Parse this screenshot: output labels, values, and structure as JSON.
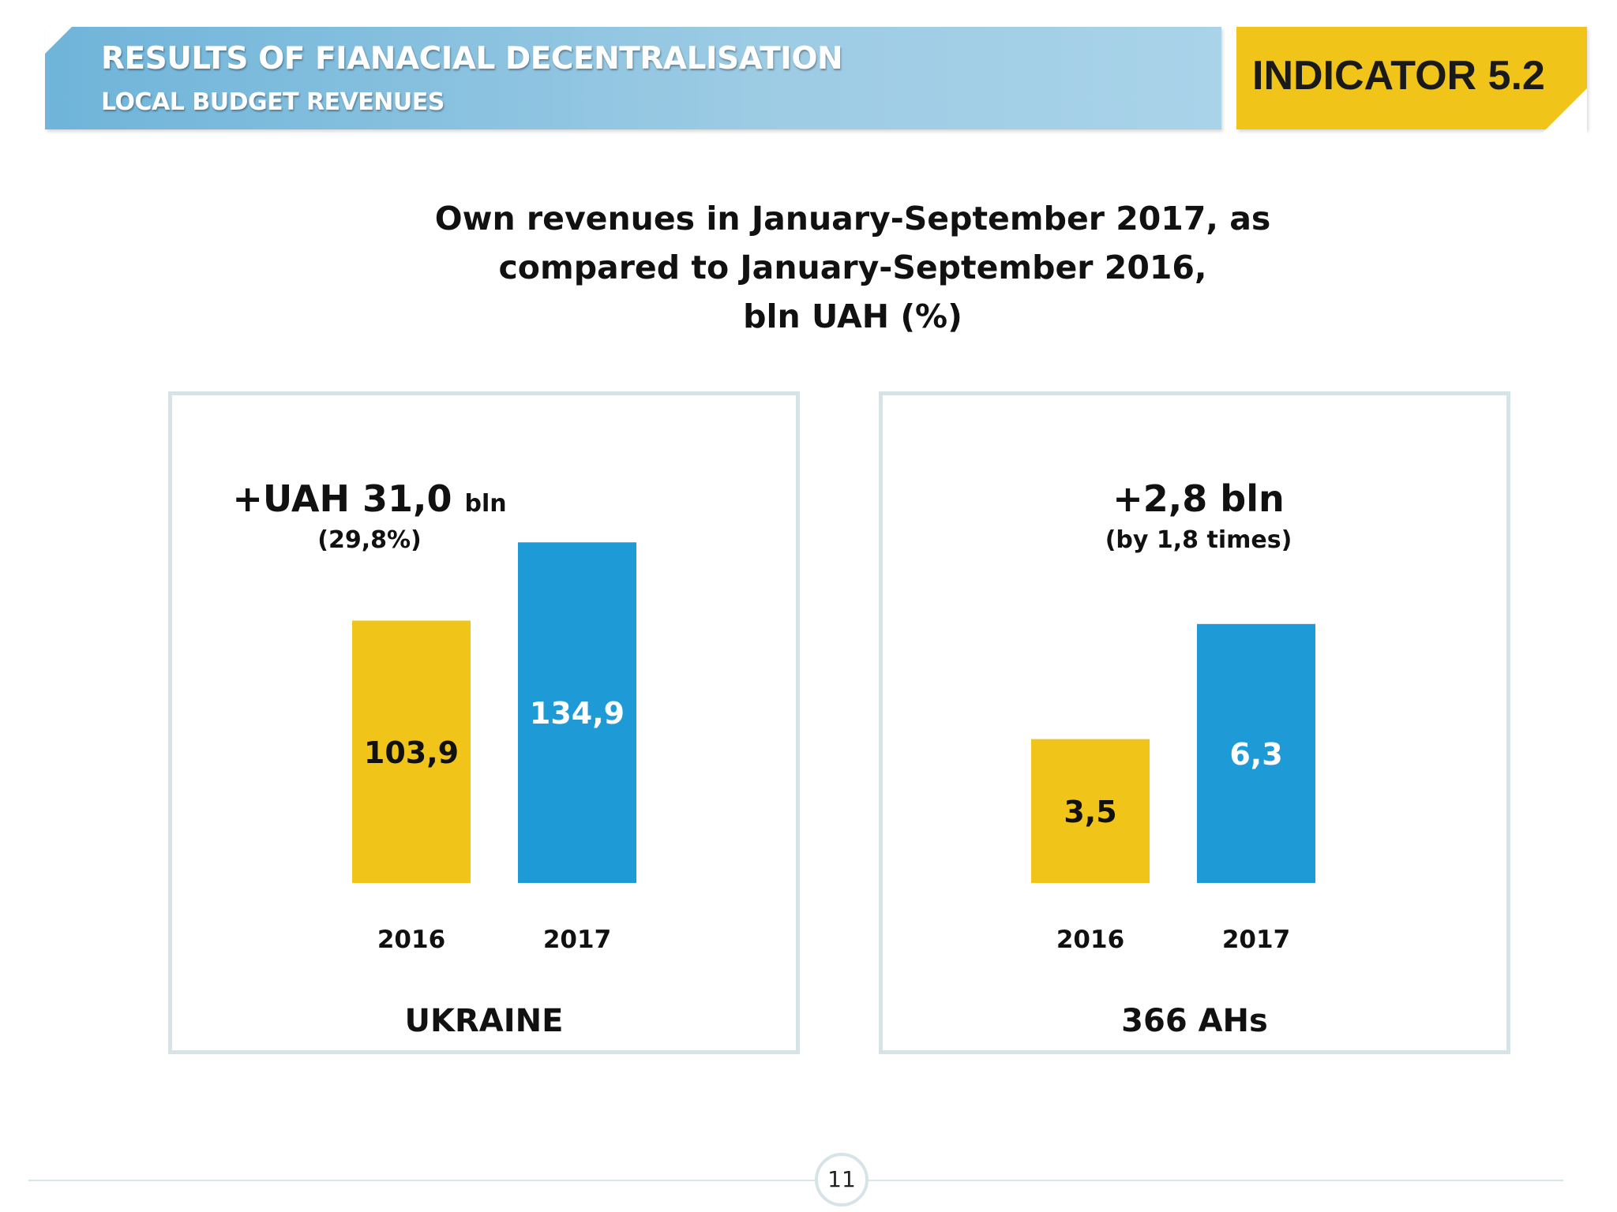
{
  "header": {
    "title": "RESULTS OF FIANACIAL DECENTRALISATION",
    "subtitle": "LOCAL BUDGET REVENUES",
    "indicator": "INDICATOR 5.2"
  },
  "title_lines": [
    "Own revenues in January-September 2017, as",
    "compared to January-September 2016,",
    "bln UAH (%)"
  ],
  "colors": {
    "bar_2016": "#f0c419",
    "bar_2017": "#1e9bd7",
    "header": "#8ec3e0",
    "indicator": "#f0c419",
    "panel_border": "#d6e4e8"
  },
  "chart_data": [
    {
      "type": "bar",
      "title": "UKRAINE",
      "categories": [
        "2016",
        "2017"
      ],
      "values": [
        103.9,
        134.9
      ],
      "value_labels": [
        "103,9",
        "134,9"
      ],
      "ylim": [
        0,
        140
      ],
      "annotation": {
        "main": "+UAH 31,0",
        "unit": "bln",
        "sub": "(29,8%)"
      },
      "grid": false
    },
    {
      "type": "bar",
      "title": "366 AHs",
      "categories": [
        "2016",
        "2017"
      ],
      "values": [
        3.5,
        6.3
      ],
      "value_labels": [
        "3,5",
        "6,3"
      ],
      "ylim": [
        0,
        8.6
      ],
      "annotation": {
        "main": "+2,8 bln",
        "unit": "",
        "sub": "(by 1,8 times)"
      },
      "grid": false
    }
  ],
  "footer": {
    "page_number": "11"
  }
}
